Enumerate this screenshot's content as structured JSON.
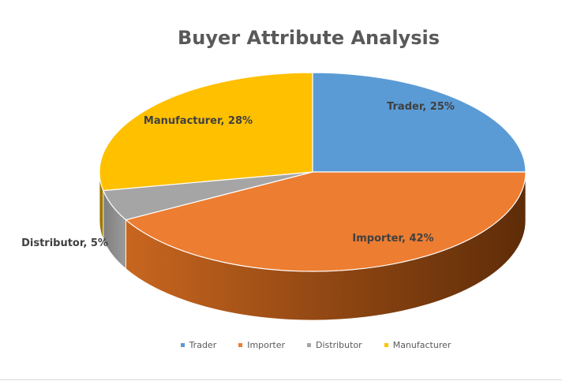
{
  "chart_data": {
    "type": "pie",
    "title": "Buyer Attribute Analysis",
    "categories": [
      "Trader",
      "Importer",
      "Distributor",
      "Manufacturer"
    ],
    "values": [
      25,
      42,
      5,
      28
    ],
    "data_labels": [
      "Trader, 25%",
      "Importer, 42%",
      "Distributor, 5%",
      "Manufacturer, 28%"
    ],
    "colors": [
      "#5B9BD5",
      "#ED7D31",
      "#A5A5A5",
      "#FFC000"
    ],
    "side_colors": [
      "#2E5F8F",
      "#7A3A0E",
      "#6E6E6E",
      "#9E7700"
    ],
    "style": "3d",
    "legend": {
      "position": "bottom",
      "entries": [
        "Trader",
        "Importer",
        "Distributor",
        "Manufacturer"
      ]
    }
  }
}
